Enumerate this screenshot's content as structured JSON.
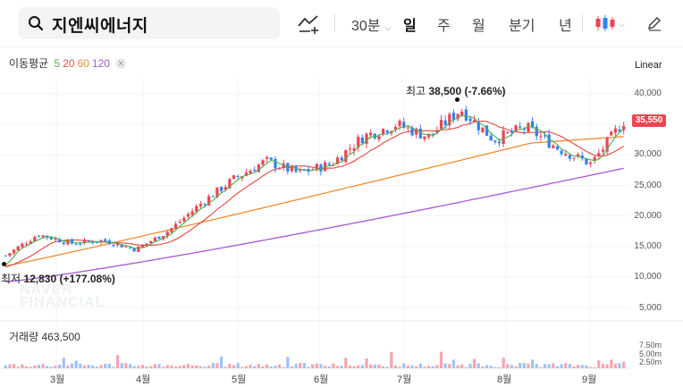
{
  "search": {
    "query": "지엔씨에너지"
  },
  "toolbar": {
    "interval": "30분",
    "periods": [
      "일",
      "주",
      "월",
      "분기",
      "년"
    ],
    "active_period": "일"
  },
  "moving_average": {
    "label": "이동평균",
    "p5": "5",
    "p20": "20",
    "p60": "60",
    "p120": "120"
  },
  "colors": {
    "ma5": "#4caf50",
    "ma20": "#e5534b",
    "ma60": "#f08c2e",
    "ma120": "#a55ad0",
    "up": "#f04452",
    "down": "#3182f6"
  },
  "scale_mode": "Linear",
  "current_price": "35,550",
  "high_annotation": {
    "label": "최고",
    "value": "38,500",
    "change": "(-7.66%)"
  },
  "low_annotation": {
    "label": "최저",
    "value": "12,830",
    "change": "(+177.08%)"
  },
  "volume": {
    "label": "거래량",
    "value": "463,500",
    "ticks": [
      "7.50m",
      "5.00m",
      "2.50m"
    ]
  },
  "watermark": [
    "NAVER",
    "FINANCIAL"
  ],
  "chart_data": {
    "type": "candlestick",
    "y_axis_ticks": [
      "40,000",
      "35,000",
      "30,000",
      "25,000",
      "20,000",
      "15,000",
      "10,000",
      "5,000"
    ],
    "ylim": [
      2500,
      43000
    ],
    "x_axis_labels": [
      "3월",
      "4월",
      "5월",
      "6월",
      "7월",
      "8월",
      "9월"
    ],
    "approx_close_path": [
      {
        "month": "2월 말",
        "close": 13500
      },
      {
        "month": "3월 초",
        "close": 17000
      },
      {
        "month": "3월 중",
        "close": 15500
      },
      {
        "month": "4월 초",
        "close": 16000
      },
      {
        "month": "4월 중",
        "close": 14500
      },
      {
        "month": "4월 말",
        "close": 17500
      },
      {
        "month": "5월 초",
        "close": 22000
      },
      {
        "month": "5월 중",
        "close": 26000
      },
      {
        "month": "5월 말",
        "close": 29000
      },
      {
        "month": "6월 초",
        "close": 27000
      },
      {
        "month": "6월 중",
        "close": 28500
      },
      {
        "month": "6월 말",
        "close": 33000
      },
      {
        "month": "7월 초",
        "close": 35000
      },
      {
        "month": "7월 중",
        "close": 33000
      },
      {
        "month": "7월 말",
        "close": 37500
      },
      {
        "month": "8월 초",
        "close": 32500
      },
      {
        "month": "8월 중",
        "close": 34500
      },
      {
        "month": "8월 말",
        "close": 31000
      },
      {
        "month": "9월 초",
        "close": 28500
      },
      {
        "month": "9월 중",
        "close": 35550
      }
    ]
  }
}
